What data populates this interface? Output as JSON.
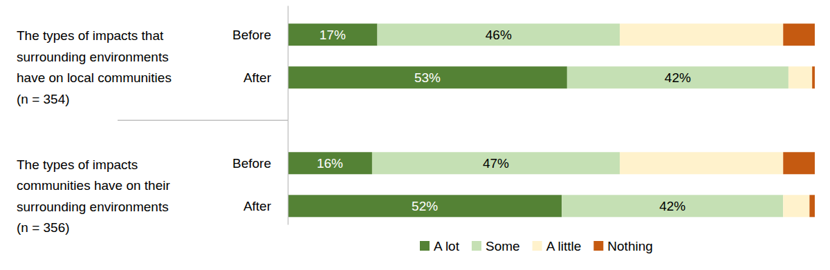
{
  "chart_data": {
    "type": "bar",
    "orientation": "horizontal",
    "stacked": true,
    "data_labels": true,
    "tick_labels": "y",
    "legend": "bottom",
    "xlim": [
      0,
      100
    ],
    "categories": [
      "Before",
      "After",
      "Before",
      "After"
    ],
    "groups": [
      {
        "label": "The types of impacts that surrounding environments have on local communities",
        "sample_label": "(n = 354)"
      },
      {
        "label": "The types of impacts communities have on their surrounding environments",
        "sample_label": "(n = 356)"
      }
    ],
    "series": [
      {
        "name": "A lot",
        "color": "#548235",
        "values": [
          17,
          53,
          16,
          52
        ],
        "value_labels": [
          "17%",
          "53%",
          "16%",
          "52%"
        ]
      },
      {
        "name": "Some",
        "color": "#c5e0b4",
        "values": [
          46,
          42,
          47,
          42
        ],
        "value_labels": [
          "46%",
          "42%",
          "47%",
          "42%"
        ]
      },
      {
        "name": "A little",
        "color": "#fff2cc",
        "values": [
          31,
          4.5,
          31,
          5
        ]
      },
      {
        "name": "Nothing",
        "color": "#c55a11",
        "values": [
          6,
          0.5,
          6,
          1
        ]
      }
    ]
  }
}
